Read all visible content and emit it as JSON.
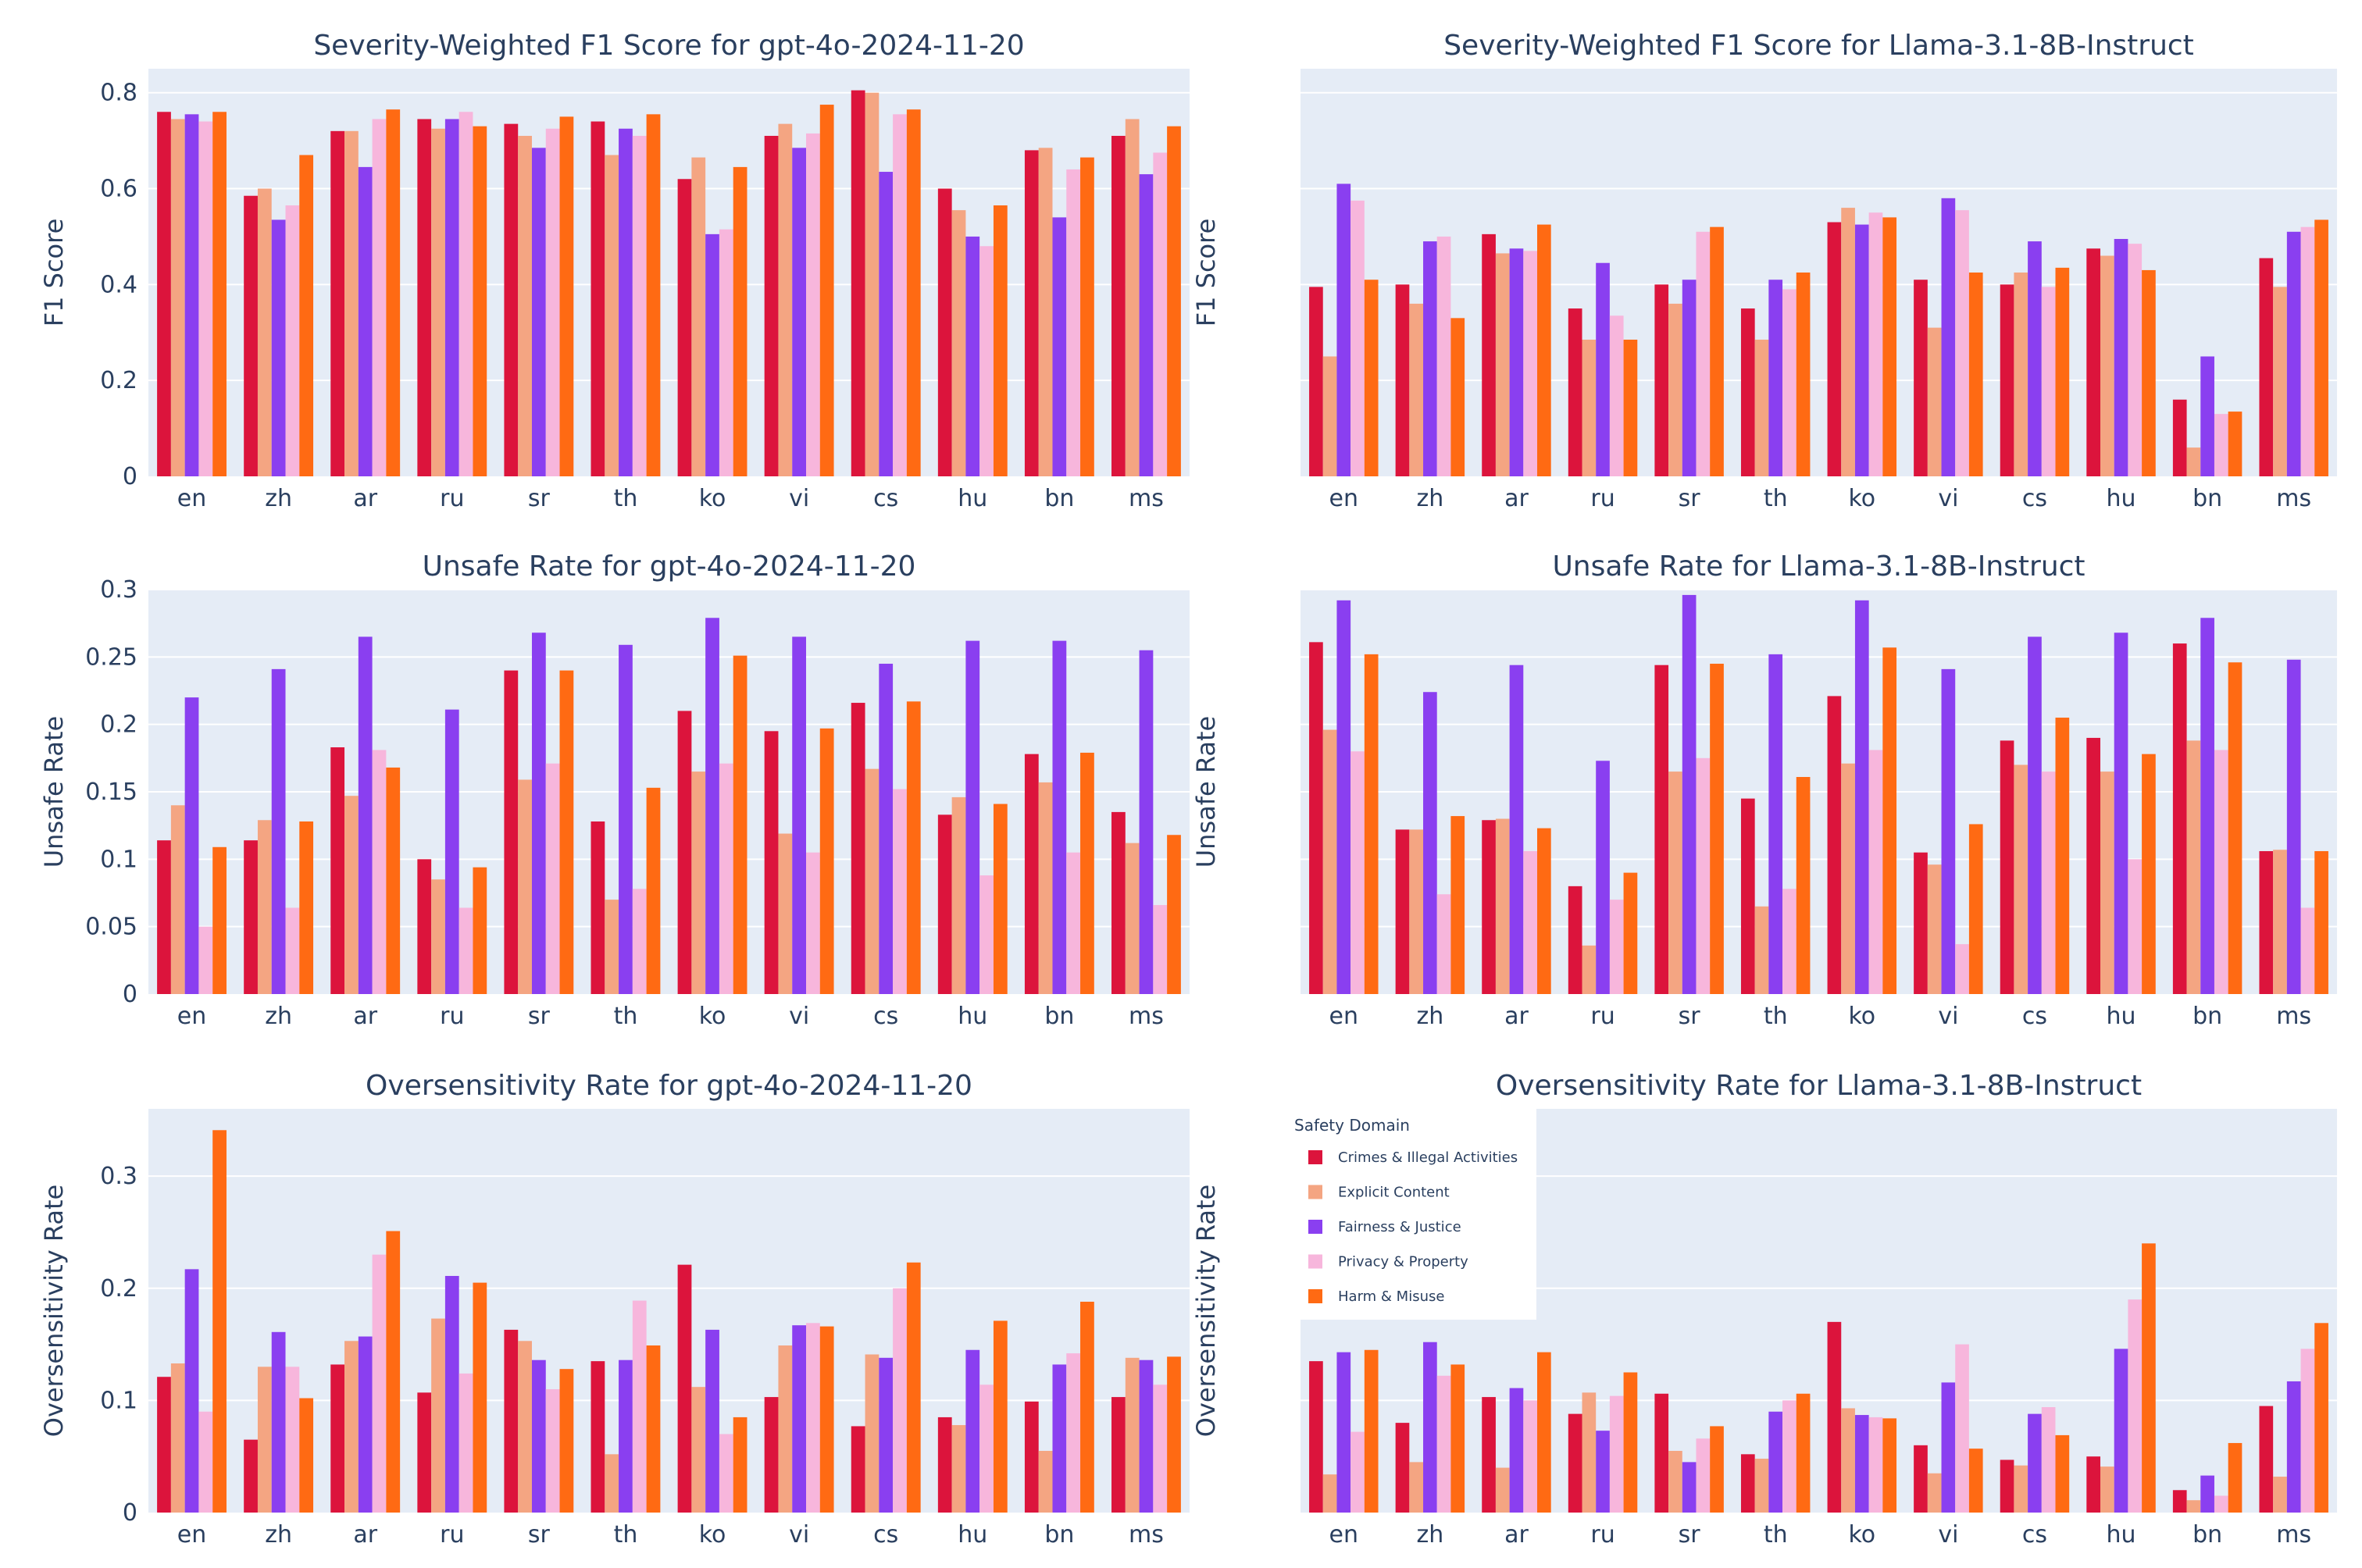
{
  "chart_data": [
    {
      "type": "bar",
      "title": "Severity-Weighted F1 Score for gpt-4o-2024-11-20",
      "ylabel": "F1 Score",
      "ylim": [
        0,
        0.85
      ],
      "yticks": [
        0,
        0.2,
        0.4,
        0.6,
        0.8
      ],
      "ytick_labels": [
        "0",
        "0.2",
        "0.4",
        "0.6",
        "0.8"
      ],
      "categories": [
        "en",
        "zh",
        "ar",
        "ru",
        "sr",
        "th",
        "ko",
        "vi",
        "cs",
        "hu",
        "bn",
        "ms"
      ],
      "series": [
        {
          "name": "Crimes & Illegal Activities",
          "values": [
            0.76,
            0.585,
            0.72,
            0.745,
            0.735,
            0.74,
            0.62,
            0.71,
            0.805,
            0.6,
            0.68,
            0.71
          ]
        },
        {
          "name": "Explicit Content",
          "values": [
            0.745,
            0.6,
            0.72,
            0.725,
            0.71,
            0.67,
            0.665,
            0.735,
            0.8,
            0.555,
            0.685,
            0.745
          ]
        },
        {
          "name": "Fairness & Justice",
          "values": [
            0.755,
            0.535,
            0.645,
            0.745,
            0.685,
            0.725,
            0.505,
            0.685,
            0.635,
            0.5,
            0.54,
            0.63
          ]
        },
        {
          "name": "Privacy & Property",
          "values": [
            0.74,
            0.565,
            0.745,
            0.76,
            0.725,
            0.71,
            0.515,
            0.715,
            0.755,
            0.48,
            0.64,
            0.675
          ]
        },
        {
          "name": "Harm & Misuse",
          "values": [
            0.76,
            0.67,
            0.765,
            0.73,
            0.75,
            0.755,
            0.645,
            0.775,
            0.765,
            0.565,
            0.665,
            0.73
          ]
        }
      ]
    },
    {
      "type": "bar",
      "title": "Severity-Weighted F1 Score for Llama-3.1-8B-Instruct",
      "ylabel": "F1 Score",
      "ylim": [
        0,
        0.85
      ],
      "yticks": [
        0,
        0.2,
        0.4,
        0.6,
        0.8
      ],
      "ytick_labels": [],
      "categories": [
        "en",
        "zh",
        "ar",
        "ru",
        "sr",
        "th",
        "ko",
        "vi",
        "cs",
        "hu",
        "bn",
        "ms"
      ],
      "series": [
        {
          "name": "Crimes & Illegal Activities",
          "values": [
            0.395,
            0.4,
            0.505,
            0.35,
            0.4,
            0.35,
            0.53,
            0.41,
            0.4,
            0.475,
            0.16,
            0.455
          ]
        },
        {
          "name": "Explicit Content",
          "values": [
            0.25,
            0.36,
            0.465,
            0.285,
            0.36,
            0.285,
            0.56,
            0.31,
            0.425,
            0.46,
            0.06,
            0.395
          ]
        },
        {
          "name": "Fairness & Justice",
          "values": [
            0.61,
            0.49,
            0.475,
            0.445,
            0.41,
            0.41,
            0.525,
            0.58,
            0.49,
            0.495,
            0.25,
            0.51
          ]
        },
        {
          "name": "Privacy & Property",
          "values": [
            0.575,
            0.5,
            0.47,
            0.335,
            0.51,
            0.39,
            0.55,
            0.555,
            0.395,
            0.485,
            0.13,
            0.52
          ]
        },
        {
          "name": "Harm & Misuse",
          "values": [
            0.41,
            0.33,
            0.525,
            0.285,
            0.52,
            0.425,
            0.54,
            0.425,
            0.435,
            0.43,
            0.135,
            0.535
          ]
        }
      ]
    },
    {
      "type": "bar",
      "title": "Unsafe Rate for gpt-4o-2024-11-20",
      "ylabel": "Unsafe Rate",
      "ylim": [
        0,
        0.3
      ],
      "yticks": [
        0,
        0.05,
        0.1,
        0.15,
        0.2,
        0.25,
        0.3
      ],
      "ytick_labels": [
        "0",
        "0.05",
        "0.1",
        "0.15",
        "0.2",
        "0.25",
        "0.3"
      ],
      "categories": [
        "en",
        "zh",
        "ar",
        "ru",
        "sr",
        "th",
        "ko",
        "vi",
        "cs",
        "hu",
        "bn",
        "ms"
      ],
      "series": [
        {
          "name": "Crimes & Illegal Activities",
          "values": [
            0.114,
            0.114,
            0.183,
            0.1,
            0.24,
            0.128,
            0.21,
            0.195,
            0.216,
            0.133,
            0.178,
            0.135
          ]
        },
        {
          "name": "Explicit Content",
          "values": [
            0.14,
            0.129,
            0.147,
            0.085,
            0.159,
            0.07,
            0.165,
            0.119,
            0.167,
            0.146,
            0.157,
            0.112
          ]
        },
        {
          "name": "Fairness & Justice",
          "values": [
            0.22,
            0.241,
            0.265,
            0.211,
            0.268,
            0.259,
            0.279,
            0.265,
            0.245,
            0.262,
            0.262,
            0.255
          ]
        },
        {
          "name": "Privacy & Property",
          "values": [
            0.05,
            0.064,
            0.181,
            0.064,
            0.171,
            0.078,
            0.171,
            0.105,
            0.152,
            0.088,
            0.105,
            0.066
          ]
        },
        {
          "name": "Harm & Misuse",
          "values": [
            0.109,
            0.128,
            0.168,
            0.094,
            0.24,
            0.153,
            0.251,
            0.197,
            0.217,
            0.141,
            0.179,
            0.118
          ]
        }
      ]
    },
    {
      "type": "bar",
      "title": "Unsafe Rate for Llama-3.1-8B-Instruct",
      "ylabel": "Unsafe Rate",
      "ylim": [
        0,
        0.3
      ],
      "yticks": [
        0,
        0.05,
        0.1,
        0.15,
        0.2,
        0.25,
        0.3
      ],
      "ytick_labels": [],
      "categories": [
        "en",
        "zh",
        "ar",
        "ru",
        "sr",
        "th",
        "ko",
        "vi",
        "cs",
        "hu",
        "bn",
        "ms"
      ],
      "series": [
        {
          "name": "Crimes & Illegal Activities",
          "values": [
            0.261,
            0.122,
            0.129,
            0.08,
            0.244,
            0.145,
            0.221,
            0.105,
            0.188,
            0.19,
            0.26,
            0.106
          ]
        },
        {
          "name": "Explicit Content",
          "values": [
            0.196,
            0.122,
            0.13,
            0.036,
            0.165,
            0.065,
            0.171,
            0.096,
            0.17,
            0.165,
            0.188,
            0.107
          ]
        },
        {
          "name": "Fairness & Justice",
          "values": [
            0.292,
            0.224,
            0.244,
            0.173,
            0.296,
            0.252,
            0.292,
            0.241,
            0.265,
            0.268,
            0.279,
            0.248
          ]
        },
        {
          "name": "Privacy & Property",
          "values": [
            0.18,
            0.074,
            0.106,
            0.07,
            0.175,
            0.078,
            0.181,
            0.037,
            0.165,
            0.1,
            0.181,
            0.064
          ]
        },
        {
          "name": "Harm & Misuse",
          "values": [
            0.252,
            0.132,
            0.123,
            0.09,
            0.245,
            0.161,
            0.257,
            0.126,
            0.205,
            0.178,
            0.246,
            0.106
          ]
        }
      ]
    },
    {
      "type": "bar",
      "title": "Oversensitivity Rate for gpt-4o-2024-11-20",
      "ylabel": "Oversensitivity Rate",
      "ylim": [
        0,
        0.36
      ],
      "yticks": [
        0,
        0.1,
        0.2,
        0.3
      ],
      "ytick_labels": [
        "0",
        "0.1",
        "0.2",
        "0.3"
      ],
      "categories": [
        "en",
        "zh",
        "ar",
        "ru",
        "sr",
        "th",
        "ko",
        "vi",
        "cs",
        "hu",
        "bn",
        "ms"
      ],
      "series": [
        {
          "name": "Crimes & Illegal Activities",
          "values": [
            0.121,
            0.065,
            0.132,
            0.107,
            0.163,
            0.135,
            0.221,
            0.103,
            0.077,
            0.085,
            0.099,
            0.103
          ]
        },
        {
          "name": "Explicit Content",
          "values": [
            0.133,
            0.13,
            0.153,
            0.173,
            0.153,
            0.052,
            0.112,
            0.149,
            0.141,
            0.078,
            0.055,
            0.138
          ]
        },
        {
          "name": "Fairness & Justice",
          "values": [
            0.217,
            0.161,
            0.157,
            0.211,
            0.136,
            0.136,
            0.163,
            0.167,
            0.138,
            0.145,
            0.132,
            0.136
          ]
        },
        {
          "name": "Privacy & Property",
          "values": [
            0.09,
            0.13,
            0.23,
            0.124,
            0.11,
            0.189,
            0.07,
            0.169,
            0.2,
            0.114,
            0.142,
            0.114
          ]
        },
        {
          "name": "Harm & Misuse",
          "values": [
            0.341,
            0.102,
            0.251,
            0.205,
            0.128,
            0.149,
            0.085,
            0.166,
            0.223,
            0.171,
            0.188,
            0.139
          ]
        }
      ]
    },
    {
      "type": "bar",
      "title": "Oversensitivity Rate for Llama-3.1-8B-Instruct",
      "ylabel": "Oversensitivity Rate",
      "ylim": [
        0,
        0.36
      ],
      "yticks": [
        0,
        0.1,
        0.2,
        0.3
      ],
      "ytick_labels": [],
      "categories": [
        "en",
        "zh",
        "ar",
        "ru",
        "sr",
        "th",
        "ko",
        "vi",
        "cs",
        "hu",
        "bn",
        "ms"
      ],
      "series": [
        {
          "name": "Crimes & Illegal Activities",
          "values": [
            0.135,
            0.08,
            0.103,
            0.088,
            0.106,
            0.052,
            0.17,
            0.06,
            0.047,
            0.05,
            0.02,
            0.095
          ]
        },
        {
          "name": "Explicit Content",
          "values": [
            0.034,
            0.045,
            0.04,
            0.107,
            0.055,
            0.048,
            0.093,
            0.035,
            0.042,
            0.041,
            0.011,
            0.032
          ]
        },
        {
          "name": "Fairness & Justice",
          "values": [
            0.143,
            0.152,
            0.111,
            0.073,
            0.045,
            0.09,
            0.087,
            0.116,
            0.088,
            0.146,
            0.033,
            0.117
          ]
        },
        {
          "name": "Privacy & Property",
          "values": [
            0.072,
            0.122,
            0.1,
            0.104,
            0.066,
            0.1,
            0.085,
            0.15,
            0.094,
            0.19,
            0.015,
            0.146
          ]
        },
        {
          "name": "Harm & Misuse",
          "values": [
            0.145,
            0.132,
            0.143,
            0.125,
            0.077,
            0.106,
            0.084,
            0.057,
            0.069,
            0.24,
            0.062,
            0.169
          ]
        }
      ]
    }
  ],
  "legend": {
    "title": "Safety Domain",
    "items": [
      {
        "name": "Crimes & Illegal Activities",
        "color": "#dc143c"
      },
      {
        "name": "Explicit Content",
        "color": "#f4a582"
      },
      {
        "name": "Fairness & Justice",
        "color": "#8a3ff0"
      },
      {
        "name": "Privacy & Property",
        "color": "#f7b6dc"
      },
      {
        "name": "Harm & Misuse",
        "color": "#ff6a13"
      }
    ]
  },
  "colors": {
    "plot_bg": "#e5ecf6",
    "grid": "#ffffff",
    "text": "#2a3f5f"
  }
}
